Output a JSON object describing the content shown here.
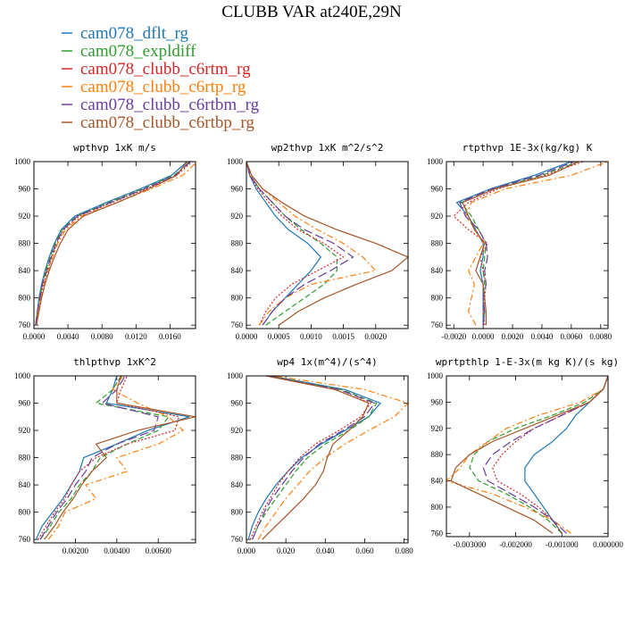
{
  "figure_title": "CLUBB VAR at240E,29N",
  "legend": [
    {
      "label": "cam078_dflt_rg",
      "color": "#1f77b4",
      "dash": "solid"
    },
    {
      "label": "cam078_expldiff",
      "color": "#2ca02c",
      "dash": "dash"
    },
    {
      "label": "cam078_clubb_c6rtm_rg",
      "color": "#d62728",
      "dash": "dot"
    },
    {
      "label": "cam078_clubb_c6rtp_rg",
      "color": "#ff7f0e",
      "dash": "dashdot"
    },
    {
      "label": "cam078_clubb_c6rtbm_rg",
      "color": "#6a3d9a",
      "dash": "longdash"
    },
    {
      "label": "cam078_clubb_c6rtbp_rg",
      "color": "#a65628",
      "dash": "solid"
    }
  ],
  "chart_data": [
    {
      "type": "line",
      "title": "wpthvp  1xK m/s",
      "xlim": [
        0,
        0.019
      ],
      "ylim": [
        1000,
        755
      ],
      "xticks": [
        "0.0000",
        "0.0040",
        "0.0080",
        "0.0120",
        "0.0160"
      ],
      "xtick_values": [
        0,
        0.004,
        0.008,
        0.012,
        0.016
      ],
      "yticks": [
        "760",
        "800",
        "840",
        "880",
        "920",
        "960",
        "1000"
      ],
      "ytick_values": [
        760,
        800,
        840,
        880,
        920,
        960,
        1000
      ],
      "y": [
        760,
        780,
        800,
        820,
        840,
        860,
        880,
        900,
        920,
        940,
        960,
        980,
        1000
      ],
      "series": [
        {
          "x": [
            0.0002,
            0.0004,
            0.0006,
            0.0009,
            0.0013,
            0.0018,
            0.0024,
            0.0032,
            0.0048,
            0.0085,
            0.0125,
            0.0162,
            0.018
          ]
        },
        {
          "x": [
            0.0002,
            0.0004,
            0.0007,
            0.001,
            0.0014,
            0.0019,
            0.0025,
            0.0033,
            0.005,
            0.0088,
            0.0128,
            0.0165,
            0.0183
          ]
        },
        {
          "x": [
            0.0002,
            0.0005,
            0.0008,
            0.0011,
            0.0016,
            0.0021,
            0.0027,
            0.0035,
            0.0053,
            0.0092,
            0.0132,
            0.0168,
            0.0186
          ]
        },
        {
          "x": [
            0.0003,
            0.0005,
            0.0008,
            0.0012,
            0.0017,
            0.0022,
            0.0028,
            0.0037,
            0.0056,
            0.0097,
            0.0138,
            0.0175,
            0.0192
          ]
        },
        {
          "x": [
            0.0002,
            0.0004,
            0.0007,
            0.001,
            0.0015,
            0.002,
            0.0026,
            0.0034,
            0.0051,
            0.009,
            0.013,
            0.0166,
            0.0184
          ]
        },
        {
          "x": [
            0.0003,
            0.0006,
            0.0009,
            0.0013,
            0.0018,
            0.0024,
            0.0031,
            0.004,
            0.0058,
            0.0098,
            0.0135,
            0.0168,
            0.018
          ]
        }
      ]
    },
    {
      "type": "line",
      "title": "wp2thvp  1xK m^2/s^2",
      "xlim": [
        0,
        0.0025
      ],
      "ylim": [
        1000,
        755
      ],
      "xticks": [
        "0.0000",
        "0.0005",
        "0.0010",
        "0.0015",
        "0.0020"
      ],
      "xtick_values": [
        0,
        0.0005,
        0.001,
        0.0015,
        0.002
      ],
      "yticks": [
        "760",
        "800",
        "840",
        "880",
        "920",
        "960",
        "1000"
      ],
      "ytick_values": [
        760,
        800,
        840,
        880,
        920,
        960,
        1000
      ],
      "y": [
        760,
        780,
        800,
        820,
        840,
        860,
        880,
        900,
        920,
        940,
        960,
        980,
        1000
      ],
      "series": [
        {
          "x": [
            0.00025,
            0.0004,
            0.0006,
            0.0008,
            0.001,
            0.00115,
            0.00095,
            0.00065,
            0.00045,
            0.0003,
            0.00015,
            5e-05,
            0.0
          ]
        },
        {
          "x": [
            0.0003,
            0.0006,
            0.0009,
            0.0012,
            0.0014,
            0.0014,
            0.00115,
            0.00085,
            0.0006,
            0.0004,
            0.0002,
            6e-05,
            0.0
          ]
        },
        {
          "x": [
            0.0002,
            0.0003,
            0.00045,
            0.0007,
            0.0011,
            0.0015,
            0.0012,
            0.0008,
            0.00055,
            0.00035,
            0.00018,
            5e-05,
            0.0
          ]
        },
        {
          "x": [
            0.0002,
            0.00035,
            0.0006,
            0.001,
            0.002,
            0.0018,
            0.0015,
            0.0011,
            0.00075,
            0.0005,
            0.00025,
            8e-05,
            0.0
          ]
        },
        {
          "x": [
            0.00025,
            0.0004,
            0.0006,
            0.0009,
            0.0013,
            0.00165,
            0.00135,
            0.0009,
            0.0006,
            0.0004,
            0.0002,
            6e-05,
            0.0
          ]
        },
        {
          "x": [
            0.0005,
            0.0008,
            0.0012,
            0.0017,
            0.00225,
            0.0025,
            0.002,
            0.0014,
            0.0009,
            0.00055,
            0.00025,
            8e-05,
            0.0
          ]
        }
      ]
    },
    {
      "type": "line",
      "title": "rtpthvp  1E-3x(kg/kg) K",
      "xlim": [
        -0.0025,
        0.0085
      ],
      "ylim": [
        1000,
        755
      ],
      "xticks": [
        "-0.0020",
        "0.0000",
        "0.0020",
        "0.0040",
        "0.0060",
        "0.0080"
      ],
      "xtick_values": [
        -0.002,
        0,
        0.002,
        0.004,
        0.006,
        0.008
      ],
      "yticks": [
        "760",
        "800",
        "840",
        "880",
        "920",
        "960",
        "1000"
      ],
      "ytick_values": [
        760,
        800,
        840,
        880,
        920,
        960,
        1000
      ],
      "y": [
        760,
        780,
        800,
        820,
        840,
        860,
        880,
        900,
        920,
        940,
        960,
        980,
        1000
      ],
      "series": [
        {
          "x": [
            0.0,
            0.0,
            0.0,
            0.0,
            -0.0002,
            0.0,
            0.0,
            -0.0005,
            -0.001,
            -0.0018,
            0.0005,
            0.0035,
            0.006
          ]
        },
        {
          "x": [
            0.0,
            0.0001,
            0.0,
            0.0001,
            0.0,
            0.0001,
            0.0002,
            -0.0003,
            -0.0008,
            -0.0015,
            0.0008,
            0.004,
            0.0065
          ]
        },
        {
          "x": [
            0.0001,
            0.0,
            0.0001,
            0.0002,
            0.0,
            -0.0002,
            0.0003,
            -0.001,
            -0.002,
            -0.001,
            0.001,
            0.0042,
            0.0068
          ]
        },
        {
          "x": [
            -0.0005,
            -0.001,
            -0.0008,
            -0.0006,
            -0.001,
            -0.0005,
            0.0,
            -0.0005,
            -0.0012,
            -0.0008,
            0.0015,
            0.006,
            0.0085
          ]
        },
        {
          "x": [
            0.0,
            0.0001,
            0.0,
            0.0002,
            0.0001,
            0.0003,
            0.0002,
            -0.0003,
            -0.0012,
            -0.0016,
            0.0006,
            0.0038,
            0.0062
          ]
        },
        {
          "x": [
            0.0002,
            0.0002,
            0.0001,
            0.0,
            -0.0005,
            -0.0002,
            0.0001,
            -0.0006,
            -0.001,
            -0.0014,
            0.0008,
            0.0045,
            0.0065
          ]
        }
      ]
    },
    {
      "type": "line",
      "title": "thlpthvp  1xK^2",
      "xlim": [
        0,
        0.0078
      ],
      "ylim": [
        1000,
        755
      ],
      "xticks": [
        "0.00200",
        "0.00400",
        "0.00600"
      ],
      "xtick_values": [
        0.002,
        0.004,
        0.006
      ],
      "yticks": [
        "760",
        "800",
        "840",
        "880",
        "920",
        "960",
        "1000"
      ],
      "ytick_values": [
        760,
        800,
        840,
        880,
        920,
        960,
        1000
      ],
      "y": [
        760,
        780,
        800,
        820,
        840,
        860,
        880,
        900,
        920,
        940,
        960,
        980,
        1000
      ],
      "series": [
        {
          "x": [
            0.0001,
            0.0004,
            0.0009,
            0.0014,
            0.0018,
            0.0022,
            0.0024,
            0.004,
            0.0055,
            0.0075,
            0.0035,
            0.0038,
            0.004
          ]
        },
        {
          "x": [
            0.0003,
            0.0008,
            0.0012,
            0.0018,
            0.0022,
            0.0028,
            0.0032,
            0.0045,
            0.006,
            0.0065,
            0.003,
            0.0038,
            0.0042
          ]
        },
        {
          "x": [
            0.0002,
            0.0006,
            0.001,
            0.0015,
            0.0018,
            0.0022,
            0.003,
            0.0045,
            0.0068,
            0.007,
            0.004,
            0.0042,
            0.0045
          ]
        },
        {
          "x": [
            0.0007,
            0.0012,
            0.0015,
            0.003,
            0.0025,
            0.0045,
            0.004,
            0.006,
            0.0072,
            0.0065,
            0.005,
            0.0038,
            0.0043
          ]
        },
        {
          "x": [
            0.0003,
            0.0007,
            0.0011,
            0.0016,
            0.002,
            0.0025,
            0.0028,
            0.004,
            0.0058,
            0.006,
            0.0033,
            0.004,
            0.0044
          ]
        },
        {
          "x": [
            0.0005,
            0.001,
            0.0014,
            0.0019,
            0.0023,
            0.0028,
            0.0035,
            0.003,
            0.005,
            0.0078,
            0.004,
            0.004,
            0.0042
          ]
        }
      ]
    },
    {
      "type": "line",
      "title": "wp4  1x(m^4)/(s^4)",
      "xlim": [
        0,
        0.082
      ],
      "ylim": [
        1000,
        755
      ],
      "xticks": [
        "0.000",
        "0.020",
        "0.040",
        "0.060",
        "0.080"
      ],
      "xtick_values": [
        0,
        0.02,
        0.04,
        0.06,
        0.08
      ],
      "yticks": [
        "760",
        "800",
        "840",
        "880",
        "920",
        "960",
        "1000"
      ],
      "ytick_values": [
        760,
        800,
        840,
        880,
        920,
        960,
        1000
      ],
      "y": [
        760,
        780,
        800,
        820,
        840,
        860,
        880,
        900,
        920,
        940,
        960,
        980,
        1000
      ],
      "series": [
        {
          "x": [
            0.001,
            0.003,
            0.006,
            0.01,
            0.015,
            0.021,
            0.028,
            0.038,
            0.05,
            0.062,
            0.068,
            0.05,
            0.012
          ]
        },
        {
          "x": [
            0.003,
            0.006,
            0.01,
            0.015,
            0.02,
            0.025,
            0.031,
            0.04,
            0.052,
            0.062,
            0.066,
            0.048,
            0.011
          ]
        },
        {
          "x": [
            0.002,
            0.005,
            0.008,
            0.012,
            0.016,
            0.021,
            0.027,
            0.035,
            0.047,
            0.058,
            0.063,
            0.045,
            0.01
          ]
        },
        {
          "x": [
            0.006,
            0.01,
            0.015,
            0.02,
            0.026,
            0.032,
            0.04,
            0.05,
            0.062,
            0.075,
            0.082,
            0.06,
            0.014
          ]
        },
        {
          "x": [
            0.003,
            0.006,
            0.009,
            0.013,
            0.018,
            0.023,
            0.029,
            0.037,
            0.049,
            0.06,
            0.065,
            0.047,
            0.011
          ]
        },
        {
          "x": [
            0.008,
            0.015,
            0.022,
            0.029,
            0.035,
            0.039,
            0.041,
            0.044,
            0.052,
            0.059,
            0.062,
            0.045,
            0.01
          ]
        }
      ]
    },
    {
      "type": "line",
      "title": "wprtpthlp  1-E-3x(m kg K)/(s kg)",
      "xlim": [
        -0.0035,
        0.0
      ],
      "ylim": [
        1000,
        755
      ],
      "xticks": [
        "-0.003000",
        "-0.002000",
        "-0.001000",
        "0.000000"
      ],
      "xtick_values": [
        -0.003,
        -0.002,
        -0.001,
        0
      ],
      "yticks": [
        "760",
        "800",
        "840",
        "880",
        "920",
        "960",
        "1000"
      ],
      "ytick_values": [
        760,
        800,
        840,
        880,
        920,
        960,
        1000
      ],
      "y": [
        760,
        780,
        800,
        820,
        840,
        860,
        880,
        900,
        920,
        940,
        960,
        980,
        1000
      ],
      "series": [
        {
          "x": [
            -0.001,
            -0.0012,
            -0.0014,
            -0.0016,
            -0.0018,
            -0.0018,
            -0.0016,
            -0.0012,
            -0.0009,
            -0.0007,
            -0.0004,
            -0.0001,
            0.0
          ]
        },
        {
          "x": [
            -0.001,
            -0.0013,
            -0.0017,
            -0.0022,
            -0.0028,
            -0.003,
            -0.0029,
            -0.0026,
            -0.002,
            -0.0012,
            -0.0005,
            -0.0001,
            0.0
          ]
        },
        {
          "x": [
            -0.001,
            -0.0012,
            -0.0015,
            -0.0019,
            -0.0024,
            -0.0025,
            -0.0023,
            -0.002,
            -0.0016,
            -0.001,
            -0.0004,
            -0.0001,
            0.0
          ]
        },
        {
          "x": [
            -0.0008,
            -0.0012,
            -0.0018,
            -0.0025,
            -0.0035,
            -0.0032,
            -0.003,
            -0.0026,
            -0.0022,
            -0.0015,
            -0.0006,
            -0.0001,
            0.0
          ]
        },
        {
          "x": [
            -0.0009,
            -0.0012,
            -0.0016,
            -0.0021,
            -0.0026,
            -0.0027,
            -0.0025,
            -0.0021,
            -0.0016,
            -0.001,
            -0.0004,
            -0.0001,
            0.0
          ]
        },
        {
          "x": [
            -0.0012,
            -0.0016,
            -0.0022,
            -0.0028,
            -0.0034,
            -0.0033,
            -0.003,
            -0.0025,
            -0.0018,
            -0.0011,
            -0.0004,
            -0.0001,
            0.0
          ]
        }
      ]
    }
  ]
}
